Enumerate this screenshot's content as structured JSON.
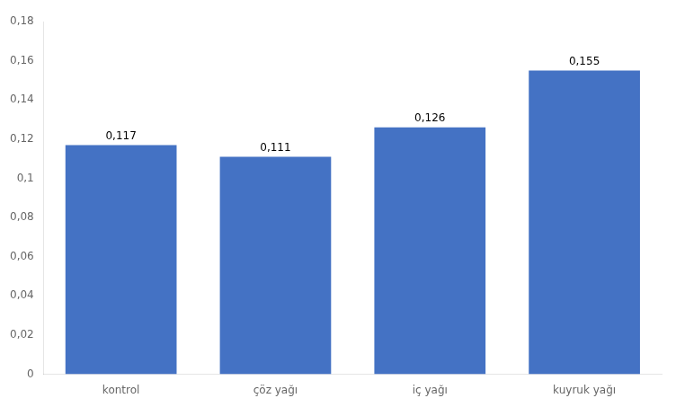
{
  "chart_data": {
    "type": "bar",
    "categories": [
      "kontrol",
      "çöz yağı",
      "iç yağı",
      "kuyruk yağı"
    ],
    "values": [
      0.117,
      0.111,
      0.126,
      0.155
    ],
    "value_labels": [
      "0,117",
      "0,111",
      "0,126",
      "0,155"
    ],
    "data_labels": true,
    "color": "#4472C4",
    "ylim": [
      0,
      0.18
    ],
    "yticks": [
      0,
      {
        "value": 0.02,
        "label": "0,02"
      },
      {
        "value": 0.04,
        "label": "0,04"
      },
      {
        "value": 0.06,
        "label": "0,06"
      },
      {
        "value": 0.08,
        "label": "0,08"
      },
      {
        "value": 0.1,
        "label": "0,1"
      },
      {
        "value": 0.12,
        "label": "0,12"
      },
      {
        "value": 0.14,
        "label": "0,14"
      },
      {
        "value": 0.16,
        "label": "0,16"
      },
      {
        "value": 0.18,
        "label": "0,18"
      }
    ],
    "grid": false
  }
}
